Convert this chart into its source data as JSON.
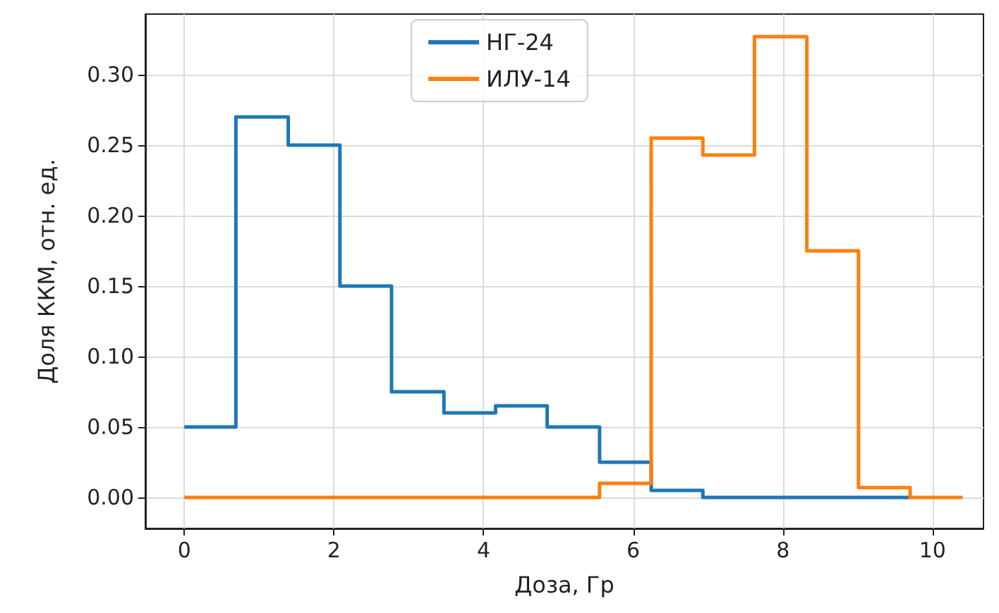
{
  "chart_data": {
    "type": "step",
    "xlabel": "Доза, Гр",
    "ylabel": "Доля ККМ, отн. ед.",
    "series": [
      {
        "name": "НГ-24",
        "color": "#1f77b4",
        "x": [
          0,
          0.69,
          1.39,
          2.08,
          2.77,
          3.47,
          4.16,
          4.85,
          5.55,
          6.24,
          6.93,
          7.62,
          8.32,
          9.01,
          9.7
        ],
        "values": [
          0.05,
          0.27,
          0.25,
          0.15,
          0.075,
          0.06,
          0.065,
          0.05,
          0.025,
          0.005,
          0,
          0,
          0,
          0,
          0
        ]
      },
      {
        "name": "ИЛУ-14",
        "color": "#ff7f0e",
        "x": [
          0,
          0.69,
          1.39,
          2.08,
          2.77,
          3.47,
          4.16,
          4.85,
          5.55,
          6.24,
          6.93,
          7.62,
          8.32,
          9.01,
          9.7,
          10.4
        ],
        "values": [
          0,
          0,
          0,
          0,
          0,
          0,
          0,
          0,
          0.01,
          0.255,
          0.243,
          0.327,
          0.175,
          0.007,
          0,
          0
        ]
      }
    ],
    "xlim": [
      -0.52,
      10.68
    ],
    "xticks": [
      0,
      2,
      4,
      6,
      8,
      10
    ],
    "ylim": [
      -0.022,
      0.343
    ],
    "yticks": [
      {
        "value": 0,
        "label": "0.00"
      },
      {
        "value": 0.05,
        "label": "0.05"
      },
      {
        "value": 0.1,
        "label": "0.10"
      },
      {
        "value": 0.15,
        "label": "0.15"
      },
      {
        "value": 0.2,
        "label": "0.20"
      },
      {
        "value": 0.25,
        "label": "0.25"
      },
      {
        "value": 0.3,
        "label": "0.30"
      }
    ],
    "grid": true,
    "legend": "top",
    "line_style": "solid",
    "marker": "none"
  }
}
